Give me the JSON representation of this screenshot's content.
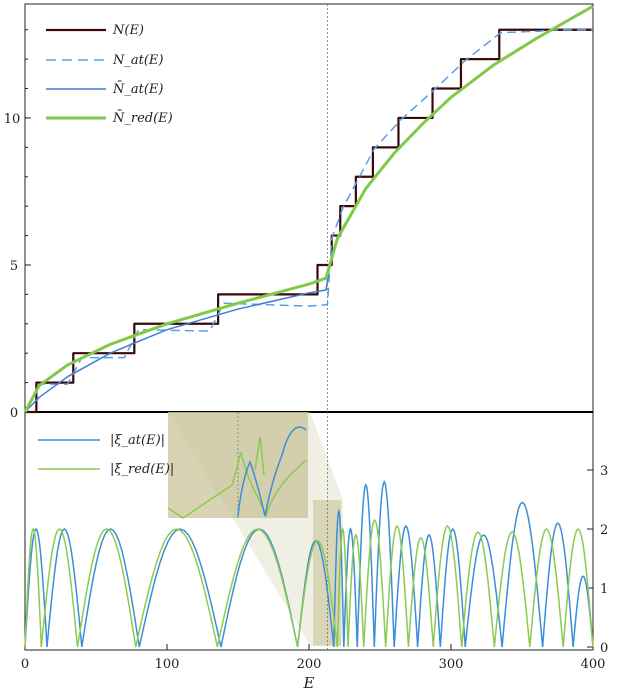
{
  "chart_data": [
    {
      "type": "line",
      "panel": "top",
      "xlabel": "E",
      "ylabel": "",
      "xlim": [
        0,
        400
      ],
      "ylim": [
        0,
        13.5
      ],
      "y_ticks": [
        0,
        5,
        10
      ],
      "grid": false,
      "legend_placement": "top-left",
      "vline_x": 213,
      "series": [
        {
          "name": "N(E)",
          "style": "step",
          "color": "#3a0a0a",
          "x": [
            0,
            8,
            34,
            77,
            136,
            206,
            216,
            222,
            233,
            245,
            263,
            287,
            307,
            334,
            362,
            370,
            400
          ],
          "y": [
            0,
            1,
            2,
            3,
            4,
            5,
            6,
            7,
            8,
            9,
            10,
            11,
            12,
            13,
            13,
            13,
            13
          ]
        },
        {
          "name": "N_at(E)",
          "style": "dashed",
          "color": "#5a9ee6",
          "x": [
            0,
            10,
            30,
            40,
            70,
            80,
            130,
            140,
            200,
            213,
            216,
            224,
            235,
            246,
            265,
            288,
            310,
            335,
            362,
            372,
            400
          ],
          "y": [
            0,
            0.95,
            0.95,
            1.85,
            1.85,
            2.8,
            2.75,
            3.7,
            3.6,
            3.65,
            5.9,
            6.95,
            7.95,
            8.95,
            9.95,
            10.95,
            11.95,
            12.9,
            12.95,
            13.0,
            13.0
          ]
        },
        {
          "name": "N̄_at(E)",
          "style": "solid",
          "color": "#3f7fd0",
          "x": [
            0,
            10,
            30,
            60,
            100,
            150,
            200,
            212,
            214,
            220,
            240,
            260,
            280,
            300,
            330,
            360,
            400
          ],
          "y": [
            0,
            0.5,
            1.2,
            2.0,
            2.8,
            3.5,
            4.05,
            4.15,
            4.8,
            5.9,
            7.6,
            8.8,
            9.8,
            10.7,
            11.8,
            12.7,
            13.8
          ]
        },
        {
          "name": "N̄_red(E)",
          "style": "solid",
          "color": "#7fca4a",
          "x": [
            0,
            10,
            30,
            60,
            100,
            150,
            200,
            212,
            214,
            220,
            240,
            260,
            280,
            300,
            330,
            360,
            400
          ],
          "y": [
            0,
            0.9,
            1.6,
            2.3,
            3.0,
            3.7,
            4.35,
            4.55,
            4.9,
            5.9,
            7.6,
            8.8,
            9.8,
            10.7,
            11.8,
            12.7,
            13.8
          ]
        }
      ],
      "legend": [
        "N(E)",
        "N_at(E)",
        "N̄_at(E)",
        "N̄_red(E)"
      ]
    },
    {
      "type": "line",
      "panel": "bottom",
      "xlabel": "E",
      "ylabel": "",
      "xlim": [
        0,
        400
      ],
      "ylim": [
        0,
        4
      ],
      "x_ticks": [
        0,
        100,
        200,
        300,
        400
      ],
      "y_ticks": [
        0,
        1,
        2,
        3
      ],
      "y_axis_side": "right",
      "grid": false,
      "legend_placement": "top-left",
      "vline_x": 213,
      "inset": {
        "note": "magnified region",
        "x_range": [
          200,
          223
        ]
      },
      "series": [
        {
          "name": "|ξ_at(E)|",
          "color": "#3a8fd6",
          "peaks": [
            [
              6,
              2.0
            ],
            [
              25,
              2.0
            ],
            [
              55,
              2.0
            ],
            [
              106,
              2.0
            ],
            [
              170,
              2.0
            ],
            [
              214,
              1.8
            ],
            [
              221,
              2.3
            ],
            [
              228,
              2.0
            ],
            [
              240,
              2.75
            ],
            [
              252,
              2.8
            ],
            [
              268,
              2.05
            ],
            [
              285,
              1.9
            ],
            [
              300,
              2.0
            ],
            [
              320,
              1.9
            ],
            [
              352,
              2.45
            ],
            [
              377,
              2.1
            ],
            [
              395,
              1.2
            ]
          ]
        },
        {
          "name": "|ξ_red(E)|",
          "color": "#8cca50",
          "peaks": [
            [
              2,
              2.0
            ],
            [
              21,
              2.0
            ],
            [
              53,
              2.0
            ],
            [
              103,
              2.0
            ],
            [
              168,
              2.0
            ],
            [
              216,
              1.8
            ],
            [
              224,
              2.0
            ],
            [
              231,
              1.9
            ],
            [
              246,
              2.15
            ],
            [
              262,
              2.05
            ],
            [
              278,
              1.85
            ],
            [
              297,
              2.05
            ],
            [
              318,
              1.95
            ],
            [
              343,
              1.95
            ],
            [
              368,
              2.0
            ],
            [
              390,
              2.0
            ]
          ]
        }
      ],
      "legend": [
        "|ξ_at(E)|",
        "|ξ_red(E)|"
      ]
    }
  ],
  "axis_labels": {
    "top_y": [
      "0",
      "5",
      "10"
    ],
    "bottom_x": [
      "0",
      "100",
      "200",
      "300",
      "400"
    ],
    "bottom_y": [
      "0",
      "1",
      "2",
      "3"
    ],
    "xlabel": "E"
  },
  "legend_top": [
    {
      "label": "N(E)"
    },
    {
      "label": "N_at(E)"
    },
    {
      "label": "N̄_at(E)"
    },
    {
      "label": "N̄_red(E)"
    }
  ],
  "legend_bottom": [
    {
      "label": "|ξ_at(E)|"
    },
    {
      "label": "|ξ_red(E)|"
    }
  ]
}
